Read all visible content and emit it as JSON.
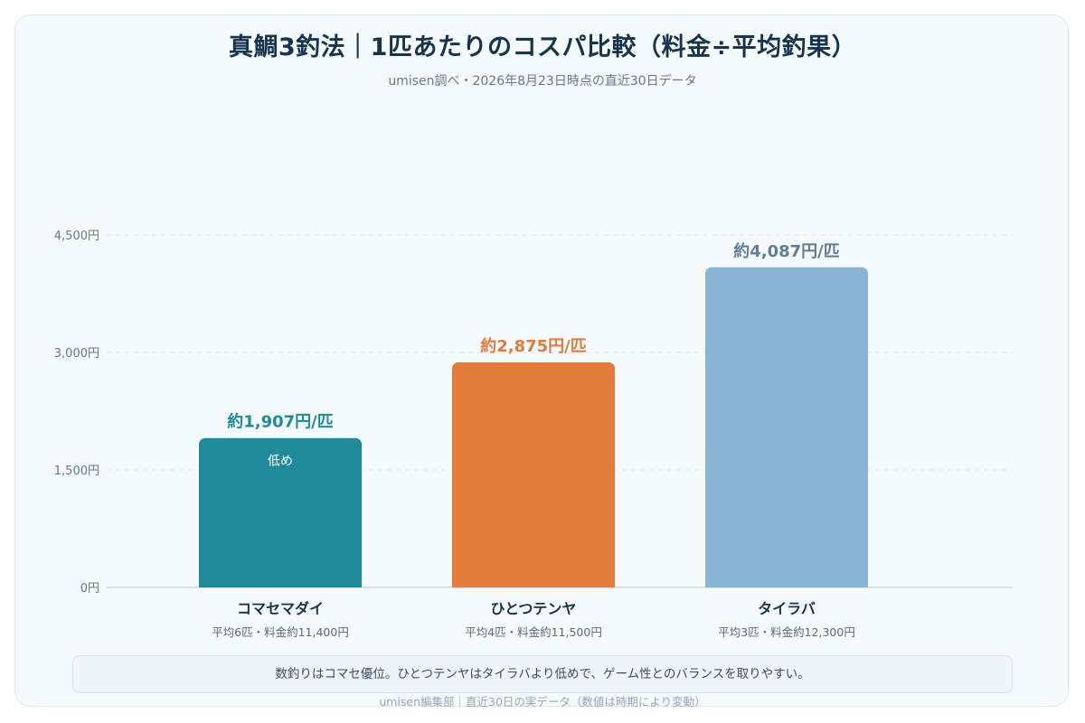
{
  "header": {
    "title": "真鯛3釣法｜1匹あたりのコスパ比較（料金÷平均釣果）",
    "subtitle": "umisen調べ・2026年8月23日時点の直近30日データ"
  },
  "chart_data": {
    "type": "bar",
    "categories": [
      "コマセマダイ",
      "ひとつテンヤ",
      "タイラバ"
    ],
    "category_details": [
      "平均6匹・料金約11,400円",
      "平均4匹・料金約11,500円",
      "平均3匹・料金約12,300円"
    ],
    "values": [
      1907,
      2875,
      4087
    ],
    "value_labels": [
      "約1,907円/匹",
      "約2,875円/匹",
      "約4,087円/匹"
    ],
    "colors": [
      "#1f8a9a",
      "#e07b3b",
      "#8bb6d3"
    ],
    "value_label_colors": [
      "#1f8a9a",
      "#e07b3b",
      "#607d95"
    ],
    "inner_labels": [
      "低め",
      "",
      ""
    ],
    "ylim": [
      0,
      4500
    ],
    "yticks": [
      0,
      1500,
      3000,
      4500
    ],
    "ytick_labels": [
      "0円",
      "1,500円",
      "3,000円",
      "4,500円"
    ],
    "grid": true
  },
  "note": "数釣りはコマセ優位。ひとつテンヤはタイラバより低めで、ゲーム性とのバランスを取りやすい。",
  "footer": "umisen編集部｜直近30日の実データ（数値は時期により変動）"
}
